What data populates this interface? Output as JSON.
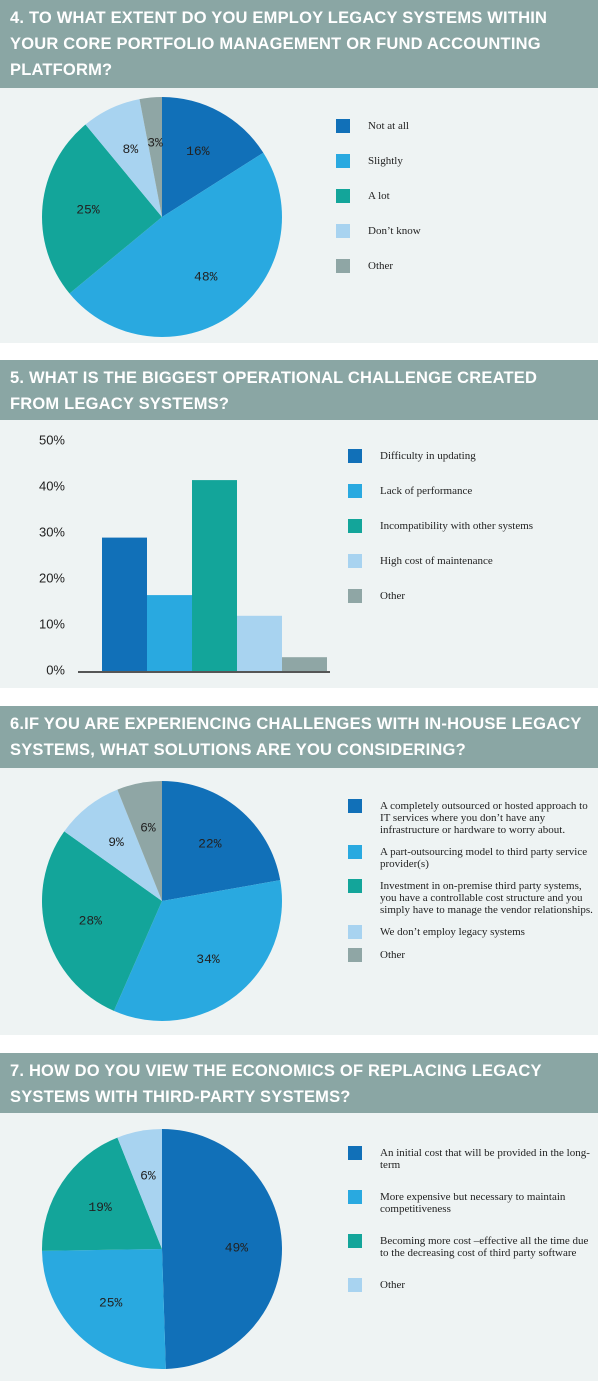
{
  "chart_data": [
    {
      "type": "pie",
      "title": "4. TO WHAT EXTENT DO YOU EMPLOY LEGACY SYSTEMS WITHIN YOUR CORE PORTFOLIO MANAGEMENT OR FUND ACCOUNTING PLATFORM?",
      "categories": [
        "Not at all",
        "Slightly",
        "A lot",
        "Don’t know",
        "Other"
      ],
      "values": [
        16,
        48,
        25,
        8,
        3
      ],
      "value_labels": [
        "16%",
        "48%",
        "25%",
        "8%",
        "3%"
      ],
      "colors": [
        "#1170b8",
        "#29a9e0",
        "#13a59a",
        "#a8d3f0",
        "#8fa6a5"
      ]
    },
    {
      "type": "bar",
      "title": "5. WHAT IS THE BIGGEST OPERATIONAL CHALLENGE CREATED FROM LEGACY SYSTEMS?",
      "categories": [
        "Difficulty in updating",
        "Lack of performance",
        "Incompatibility with other systems",
        "High cost of maintenance",
        "Other"
      ],
      "values": [
        29,
        16.5,
        41.5,
        12,
        3
      ],
      "colors": [
        "#1170b8",
        "#29a9e0",
        "#13a59a",
        "#a8d3f0",
        "#8fa6a5"
      ],
      "ylim": [
        0,
        50
      ],
      "yticks": [
        {
          "value": 0,
          "label": "0%"
        },
        {
          "value": 10,
          "label": "10%"
        },
        {
          "value": 20,
          "label": "20%"
        },
        {
          "value": 30,
          "label": "30%"
        },
        {
          "value": 40,
          "label": "40%"
        },
        {
          "value": 50,
          "label": "50%"
        }
      ]
    },
    {
      "type": "pie",
      "title": "6.IF YOU ARE EXPERIENCING CHALLENGES WITH IN-HOUSE LEGACY SYSTEMS, WHAT SOLUTIONS ARE YOU CONSIDERING?",
      "categories": [
        "A completely outsourced or hosted approach to IT services where you don’t have any infrastructure or hardware to worry about.",
        "A part-outsourcing model to third party service provider(s)",
        "Investment in on-premise third party systems, you have a controllable cost structure and you simply have to manage the vendor relationships.",
        "We don’t employ legacy systems",
        "Other"
      ],
      "values": [
        22,
        34,
        28,
        9,
        6
      ],
      "value_labels": [
        "22%",
        "34%",
        "28%",
        "9%",
        "6%"
      ],
      "colors": [
        "#1170b8",
        "#29a9e0",
        "#13a59a",
        "#a8d3f0",
        "#8fa6a5"
      ]
    },
    {
      "type": "pie",
      "title": "7. HOW DO YOU VIEW THE ECONOMICS OF REPLACING LEGACY SYSTEMS WITH THIRD-PARTY SYSTEMS?",
      "categories": [
        "An initial cost that will be provided in the long-term",
        "More expensive but necessary to maintain competitiveness",
        "Becoming more cost –effective all the time due to the decreasing cost of third party software",
        "Other"
      ],
      "values": [
        49,
        25,
        19,
        6
      ],
      "value_labels": [
        "49%",
        "25%",
        "19%",
        "6%"
      ],
      "colors": [
        "#1170b8",
        "#29a9e0",
        "#13a59a",
        "#a8d3f0"
      ]
    }
  ]
}
